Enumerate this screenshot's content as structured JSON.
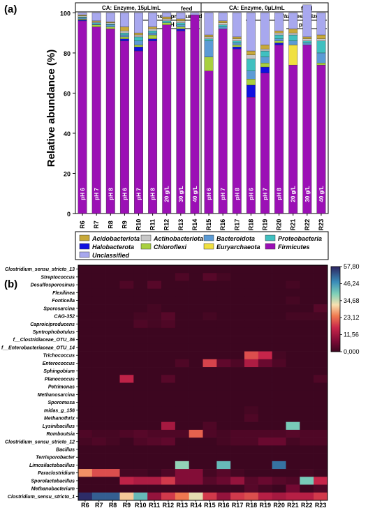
{
  "panels": {
    "a": "(a)",
    "b": "(b)"
  },
  "conditions": {
    "left_title": "CA: Enzyme, 15μL/mL",
    "right_title": "CA: Enzyme, 0μL/mL",
    "feed": "feed",
    "insitu": "insitu",
    "pressurized": " pressurized",
    "ph8": "pH 8"
  },
  "legend": [
    {
      "name": "Acidobacteriota",
      "color": "#c8a93a"
    },
    {
      "name": "Actinobacteriota",
      "color": "#c8c8c8"
    },
    {
      "name": "Bacteroidota",
      "color": "#5b9bd5"
    },
    {
      "name": "Proteobacteria",
      "color": "#40c0c0"
    },
    {
      "name": "Halobacterota",
      "color": "#1010e0"
    },
    {
      "name": "Chloroflexi",
      "color": "#a8d040"
    },
    {
      "name": "Euryarchaeota",
      "color": "#f0e040"
    },
    {
      "name": "Firmicutes",
      "color": "#9b10b5"
    },
    {
      "name": "Unclassified",
      "color": "#a8a8ee"
    }
  ],
  "chart_data": [
    {
      "type": "bar",
      "stacked": true,
      "title": "",
      "xlabel": "",
      "ylabel": "Relative abundance (%)",
      "ylim": [
        0,
        105
      ],
      "yticks": [
        0,
        20,
        40,
        60,
        80,
        100
      ],
      "categories": [
        "R6",
        "R7",
        "R8",
        "R9",
        "R10",
        "R11",
        "R12",
        "R13",
        "R14",
        "R15",
        "R16",
        "R17",
        "R18",
        "R19",
        "R20",
        "R21",
        "R22",
        "R23"
      ],
      "bar_labels": [
        "pH 6",
        "pH 7",
        "pH 8",
        "pH 6",
        "pH 7",
        "pH 8",
        "20 g/L",
        "30 g/L",
        "40 g/L",
        "pH 6",
        "pH 7",
        "pH 8",
        "pH 6",
        "pH 7",
        "pH 8",
        "20 g/L",
        "30 g/L",
        "40 g/L"
      ],
      "series": [
        {
          "name": "Firmicutes",
          "values": [
            96,
            93,
            92,
            86,
            81,
            86,
            94,
            91,
            99,
            71,
            92,
            82,
            58,
            70,
            84,
            74,
            84,
            74
          ]
        },
        {
          "name": "Halobacterota",
          "values": [
            0.5,
            0,
            0,
            1,
            2,
            1,
            0,
            1,
            0,
            0,
            0,
            1,
            6,
            3,
            1,
            0,
            0,
            0
          ]
        },
        {
          "name": "Chloroflexi",
          "values": [
            0.5,
            1,
            1,
            1,
            1,
            2,
            1,
            1,
            0,
            7,
            0,
            1,
            3,
            2,
            1,
            0,
            0,
            1
          ]
        },
        {
          "name": "Euryarchaeota",
          "values": [
            0,
            0,
            0,
            0,
            0,
            0,
            0,
            0,
            0,
            0,
            0,
            0,
            0,
            0,
            0,
            10,
            0,
            0
          ]
        },
        {
          "name": "Bacteroidota",
          "values": [
            0.5,
            0.5,
            1,
            1,
            2,
            1,
            0,
            1,
            0,
            8,
            1,
            1,
            4,
            3,
            1,
            2,
            1,
            5
          ]
        },
        {
          "name": "Proteobacteria",
          "values": [
            0.5,
            0.5,
            0.5,
            1,
            2,
            1,
            1,
            1,
            0,
            1,
            1,
            1,
            6,
            3,
            2,
            3,
            1,
            6
          ]
        },
        {
          "name": "Actinobacteriota",
          "values": [
            0.5,
            0.5,
            0.5,
            1,
            1,
            1,
            1,
            1,
            0,
            1,
            1,
            1,
            2,
            1,
            1,
            1,
            1,
            1
          ]
        },
        {
          "name": "Acidobacteriota",
          "values": [
            0.5,
            0.5,
            0.5,
            2,
            1,
            1,
            1,
            1,
            0,
            1,
            1,
            1,
            2,
            2,
            1,
            2,
            1,
            2
          ]
        },
        {
          "name": "Unclassified",
          "values": [
            1,
            4,
            4.5,
            7,
            10,
            7,
            2,
            3,
            1,
            11,
            4,
            12,
            19,
            16,
            9,
            8,
            16,
            11
          ]
        }
      ]
    },
    {
      "type": "heatmap",
      "title": "",
      "x": [
        "R6",
        "R7",
        "R8",
        "R9",
        "R10",
        "R11",
        "R12",
        "R13",
        "R14",
        "R15",
        "R16",
        "R17",
        "R18",
        "R19",
        "R20",
        "R21",
        "R22",
        "R23"
      ],
      "y": [
        "Clostridium_sensu_stricto_13",
        "Streptococcus",
        "Desulfosporosinus",
        "Flexilinea",
        "Fonticella",
        "Sporosarcina",
        "CAG-352",
        "Caproiciproducens",
        "Syntrophobotulus",
        "f__Clostridiaceae_OTU_36",
        "f__Enterobacteriaceae_OTU_14",
        "Trichococcus",
        "Enterococcus",
        "Sphingobium",
        "Planococcus",
        "Petrimonas",
        "Methanosarcina",
        "Sporomusa",
        "midas_g_156",
        "Methanothrix",
        "Lysinibacillus",
        "Romboutsia",
        "Clostridium_sensu_stricto_12",
        "Bacillus",
        "Terrisporobacter",
        "Limosilactobacillus",
        "Paraclostridium",
        "Sporolactobacillus",
        "Methanobacterium",
        "Clostridium_sensu_stricto_1"
      ],
      "colorbar_ticks": [
        "0,000",
        "11,56",
        "23,12",
        "34,68",
        "46,24",
        "57,80"
      ],
      "vmin": 0,
      "vmax": 57.8,
      "values": [
        [
          0,
          0,
          0,
          0,
          0,
          0,
          0,
          0,
          0,
          0,
          0,
          0,
          0,
          0,
          0,
          0,
          0,
          0
        ],
        [
          0,
          0,
          0,
          0,
          0,
          0,
          0,
          2,
          0,
          3,
          1,
          0,
          0,
          0,
          0,
          0,
          0,
          0
        ],
        [
          0,
          0,
          0,
          2,
          0,
          3,
          0,
          0,
          0,
          0,
          0,
          0,
          0,
          0,
          0,
          1,
          0,
          0
        ],
        [
          0,
          0,
          0,
          0,
          0,
          0,
          0,
          0,
          0,
          0,
          0,
          0,
          0,
          0,
          0,
          0,
          0,
          0
        ],
        [
          0,
          0,
          0,
          0,
          0,
          0,
          0,
          0,
          0,
          0,
          0,
          0,
          0,
          0,
          0,
          1,
          0,
          0
        ],
        [
          0,
          0,
          0,
          0,
          0,
          1,
          0,
          0,
          0,
          0,
          0,
          0,
          0,
          0,
          0,
          0,
          0,
          3
        ],
        [
          0,
          0,
          0,
          0,
          1,
          1,
          3,
          0,
          0,
          1,
          0,
          0,
          0,
          0,
          0,
          1,
          1,
          1
        ],
        [
          0,
          0,
          0,
          0,
          2,
          1,
          2,
          0,
          0,
          0,
          0,
          0,
          0,
          0,
          0,
          0,
          0,
          0
        ],
        [
          0,
          0,
          0,
          0,
          0,
          0,
          0,
          0,
          0,
          0,
          0,
          0,
          0,
          0,
          0,
          0,
          0,
          0
        ],
        [
          0,
          0,
          0,
          0,
          0,
          0,
          0,
          0,
          0,
          0,
          0,
          0,
          0,
          0,
          0,
          0,
          0,
          0
        ],
        [
          0,
          0,
          0,
          0,
          0,
          0,
          0,
          0,
          0,
          0,
          0,
          0,
          0,
          0,
          0,
          0,
          0,
          0
        ],
        [
          0,
          0,
          0,
          0,
          0,
          0,
          0,
          0,
          0,
          0,
          0,
          0,
          20,
          16,
          1,
          0,
          0,
          0
        ],
        [
          0,
          0,
          0,
          0,
          0,
          0,
          0,
          2,
          0,
          19,
          4,
          2,
          13,
          5,
          2,
          0,
          0,
          0
        ],
        [
          0,
          0,
          0,
          0,
          0,
          0,
          0,
          0,
          0,
          0,
          0,
          0,
          0,
          0,
          0,
          0,
          0,
          0
        ],
        [
          0,
          0,
          0,
          15,
          0,
          0,
          3,
          0,
          0,
          0,
          0,
          0,
          0,
          0,
          0,
          0,
          0,
          2
        ],
        [
          0,
          0,
          0,
          0,
          0,
          0,
          0,
          0,
          0,
          0,
          0,
          0,
          0,
          0,
          0,
          0,
          0,
          0
        ],
        [
          0,
          0,
          0,
          0,
          0,
          0,
          0,
          0,
          0,
          0,
          0,
          0,
          0,
          0,
          0,
          0,
          0,
          0
        ],
        [
          0,
          0,
          0,
          0,
          0,
          0,
          0,
          0,
          0,
          0,
          0,
          0,
          0,
          0,
          0,
          0,
          0,
          0
        ],
        [
          0,
          0,
          0,
          0,
          0,
          0,
          0,
          0,
          0,
          0,
          0,
          0,
          1,
          0,
          0,
          0,
          0,
          0
        ],
        [
          0,
          0,
          0,
          0,
          0,
          0,
          0,
          0,
          0,
          0,
          0,
          0,
          2,
          0,
          0,
          0,
          0,
          0
        ],
        [
          0,
          0,
          0,
          0,
          0,
          0,
          12,
          0,
          0,
          2,
          0,
          0,
          0,
          0,
          0,
          40,
          0,
          0
        ],
        [
          2,
          1,
          1,
          2,
          3,
          2,
          2,
          2,
          22,
          2,
          1,
          2,
          2,
          2,
          2,
          3,
          2,
          2
        ],
        [
          1,
          2,
          1,
          0,
          2,
          3,
          4,
          0,
          0,
          0,
          1,
          2,
          2,
          5,
          5,
          1,
          2,
          2
        ],
        [
          0,
          0,
          0,
          0,
          0,
          0,
          0,
          0,
          0,
          0,
          0,
          0,
          0,
          0,
          0,
          0,
          0,
          0
        ],
        [
          0,
          0,
          0,
          0,
          0,
          0,
          0,
          0,
          0,
          0,
          0,
          0,
          0,
          0,
          0,
          0,
          0,
          0
        ],
        [
          0,
          0,
          0,
          0,
          0,
          0,
          0,
          38,
          0,
          0,
          42,
          0,
          0,
          0,
          50,
          0,
          0,
          0
        ],
        [
          26,
          20,
          20,
          1,
          1,
          0,
          2,
          8,
          8,
          1,
          3,
          1,
          0,
          0,
          0,
          0,
          1,
          0
        ],
        [
          0,
          0,
          0,
          15,
          13,
          13,
          18,
          8,
          8,
          3,
          5,
          10,
          3,
          5,
          3,
          2,
          40,
          16
        ],
        [
          0,
          0,
          0,
          0,
          0,
          0,
          0,
          0,
          0,
          0,
          0,
          0,
          3,
          1,
          0,
          6,
          0,
          2
        ],
        [
          57,
          52,
          52,
          30,
          42,
          10,
          18,
          24,
          33,
          18,
          10,
          18,
          20,
          14,
          12,
          14,
          14,
          18
        ]
      ]
    }
  ]
}
